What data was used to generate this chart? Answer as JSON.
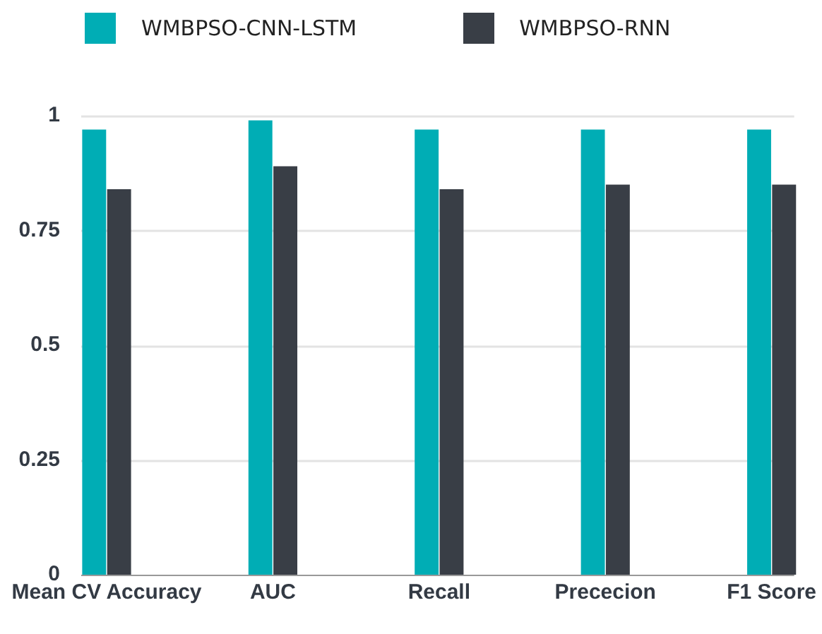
{
  "chart_data": {
    "type": "bar",
    "categories": [
      "Mean CV Accuracy",
      "AUC",
      "Recall",
      "Prececion",
      "F1 Score"
    ],
    "series": [
      {
        "name": "WMBPSO-CNN-LSTM",
        "color": "#00adb5",
        "values": [
          0.97,
          0.99,
          0.97,
          0.97,
          0.97
        ]
      },
      {
        "name": "WMBPSO-RNN",
        "color": "#393e46",
        "values": [
          0.84,
          0.89,
          0.84,
          0.85,
          0.85
        ]
      }
    ],
    "ylim": [
      0,
      1
    ],
    "yticks": [
      0,
      0.25,
      0.5,
      0.75,
      1
    ],
    "grid": "y",
    "legend": "top left"
  }
}
